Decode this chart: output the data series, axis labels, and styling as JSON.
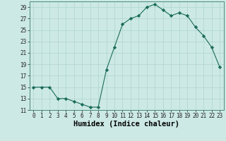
{
  "x": [
    0,
    1,
    2,
    3,
    4,
    5,
    6,
    7,
    8,
    9,
    10,
    11,
    12,
    13,
    14,
    15,
    16,
    17,
    18,
    19,
    20,
    21,
    22,
    23
  ],
  "y": [
    15,
    15,
    15,
    13,
    13,
    12.5,
    12,
    11.5,
    11.5,
    18,
    22,
    26,
    27,
    27.5,
    29,
    29.5,
    28.5,
    27.5,
    28,
    27.5,
    25.5,
    24,
    22,
    18.5
  ],
  "line_color": "#1a6b5a",
  "marker": "D",
  "marker_size": 2.2,
  "bg_color": "#cce9e5",
  "grid_color": "#afd4cf",
  "xlabel": "Humidex (Indice chaleur)",
  "ylim": [
    11,
    30
  ],
  "xlim": [
    -0.5,
    23.5
  ],
  "yticks": [
    11,
    13,
    15,
    17,
    19,
    21,
    23,
    25,
    27,
    29
  ],
  "xticks": [
    0,
    1,
    2,
    3,
    4,
    5,
    6,
    7,
    8,
    9,
    10,
    11,
    12,
    13,
    14,
    15,
    16,
    17,
    18,
    19,
    20,
    21,
    22,
    23
  ],
  "xlabel_fontsize": 7.5,
  "tick_fontsize": 5.5
}
